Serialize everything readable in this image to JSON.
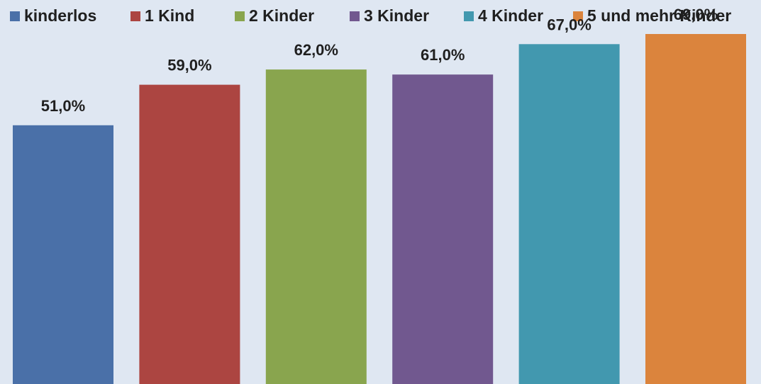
{
  "chart_data": {
    "type": "bar",
    "categories": [
      "kinderlos",
      "1 Kind",
      "2 Kinder",
      "3 Kinder",
      "4 Kinder",
      "5 und mehr Kinder"
    ],
    "values": [
      51.0,
      59.0,
      62.0,
      61.0,
      67.0,
      69.0
    ],
    "value_labels": [
      "51,0%",
      "59,0%",
      "62,0%",
      "61,0%",
      "67,0%",
      "69,0%"
    ],
    "colors": [
      "#4a70a8",
      "#ac4541",
      "#89a54e",
      "#71588f",
      "#4298af",
      "#db843d"
    ],
    "unit": "%",
    "ylim": [
      0,
      75
    ],
    "grid": false,
    "legend_position": "top",
    "axes_visible": false
  }
}
